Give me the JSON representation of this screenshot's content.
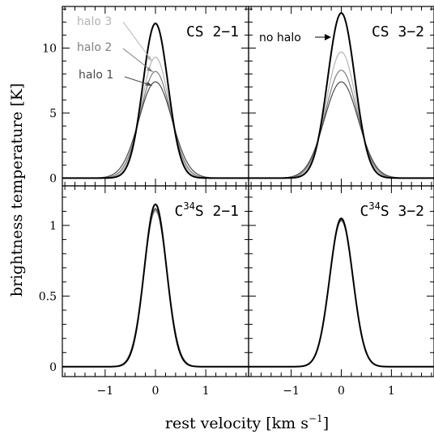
{
  "figure": {
    "xlabel": "rest velocity [km s",
    "xlabel_exp": "−1",
    "xlabel_close": "]",
    "ylabel": "brightness temperature [K]"
  },
  "annotations": {
    "halo3": "halo 3",
    "halo2": "halo 2",
    "halo1": "halo 1",
    "nohalo": "no halo"
  },
  "colors": {
    "no_halo": "#000000",
    "halo1": "#4a4a4a",
    "halo2": "#7f7f7f",
    "halo3": "#b4b4b4"
  },
  "chart_data": [
    {
      "type": "line",
      "title": "CS 2−1",
      "xlim": [
        -1.85,
        1.85
      ],
      "ylim": [
        -0.6,
        13.2
      ],
      "xticks": [
        -1,
        0,
        1
      ],
      "yticks": [
        0,
        5,
        10
      ],
      "ytick_labels": [
        "0",
        "5",
        "10"
      ],
      "series": [
        {
          "name": "no halo",
          "peak": 11.9,
          "sigma": 0.25,
          "color": "#000000"
        },
        {
          "name": "halo 1",
          "peak": 7.4,
          "sigma": 0.33,
          "color": "#4a4a4a"
        },
        {
          "name": "halo 2",
          "peak": 8.2,
          "sigma": 0.3,
          "color": "#7f7f7f"
        },
        {
          "name": "halo 3",
          "peak": 9.3,
          "sigma": 0.28,
          "color": "#b4b4b4"
        }
      ]
    },
    {
      "type": "line",
      "title": "CS 3−2",
      "xlim": [
        -1.85,
        1.85
      ],
      "ylim": [
        -0.6,
        13.2
      ],
      "xticks": [
        -1,
        0,
        1
      ],
      "yticks": [
        0,
        5,
        10
      ],
      "series": [
        {
          "name": "no halo",
          "peak": 12.7,
          "sigma": 0.27,
          "color": "#000000"
        },
        {
          "name": "halo 1",
          "peak": 7.4,
          "sigma": 0.34,
          "color": "#4a4a4a"
        },
        {
          "name": "halo 2",
          "peak": 8.3,
          "sigma": 0.32,
          "color": "#7f7f7f"
        },
        {
          "name": "halo 3",
          "peak": 9.7,
          "sigma": 0.3,
          "color": "#b4b4b4"
        }
      ]
    },
    {
      "type": "line",
      "title": "C³⁴S 2−1",
      "title_parts": [
        "C",
        "34",
        "S 2−1"
      ],
      "xlim": [
        -1.85,
        1.85
      ],
      "ylim": [
        -0.07,
        1.28
      ],
      "xticks": [
        -1,
        0,
        1
      ],
      "xtick_labels": [
        "−1",
        "0",
        "1"
      ],
      "yticks": [
        0,
        0.5,
        1
      ],
      "ytick_labels": [
        "0",
        "0.5",
        "1"
      ],
      "series": [
        {
          "name": "no halo",
          "peak": 1.15,
          "sigma": 0.22,
          "color": "#000000"
        },
        {
          "name": "halo 1",
          "peak": 1.12,
          "sigma": 0.225,
          "color": "#4a4a4a"
        },
        {
          "name": "halo 2",
          "peak": 1.11,
          "sigma": 0.227,
          "color": "#7f7f7f"
        },
        {
          "name": "halo 3",
          "peak": 1.1,
          "sigma": 0.23,
          "color": "#b4b4b4"
        }
      ]
    },
    {
      "type": "line",
      "title": "C³⁴S 3−2",
      "title_parts": [
        "C",
        "34",
        "S 3−2"
      ],
      "xlim": [
        -1.85,
        1.85
      ],
      "ylim": [
        -0.07,
        1.28
      ],
      "xticks": [
        -1,
        0,
        1
      ],
      "xtick_labels": [
        "−1",
        "0",
        "1"
      ],
      "yticks": [
        0,
        0.5,
        1
      ],
      "series": [
        {
          "name": "no halo",
          "peak": 1.05,
          "sigma": 0.23,
          "color": "#000000"
        },
        {
          "name": "halo 1",
          "peak": 1.04,
          "sigma": 0.232,
          "color": "#4a4a4a"
        },
        {
          "name": "halo 2",
          "peak": 1.035,
          "sigma": 0.233,
          "color": "#7f7f7f"
        },
        {
          "name": "halo 3",
          "peak": 1.03,
          "sigma": 0.235,
          "color": "#b4b4b4"
        }
      ]
    }
  ]
}
